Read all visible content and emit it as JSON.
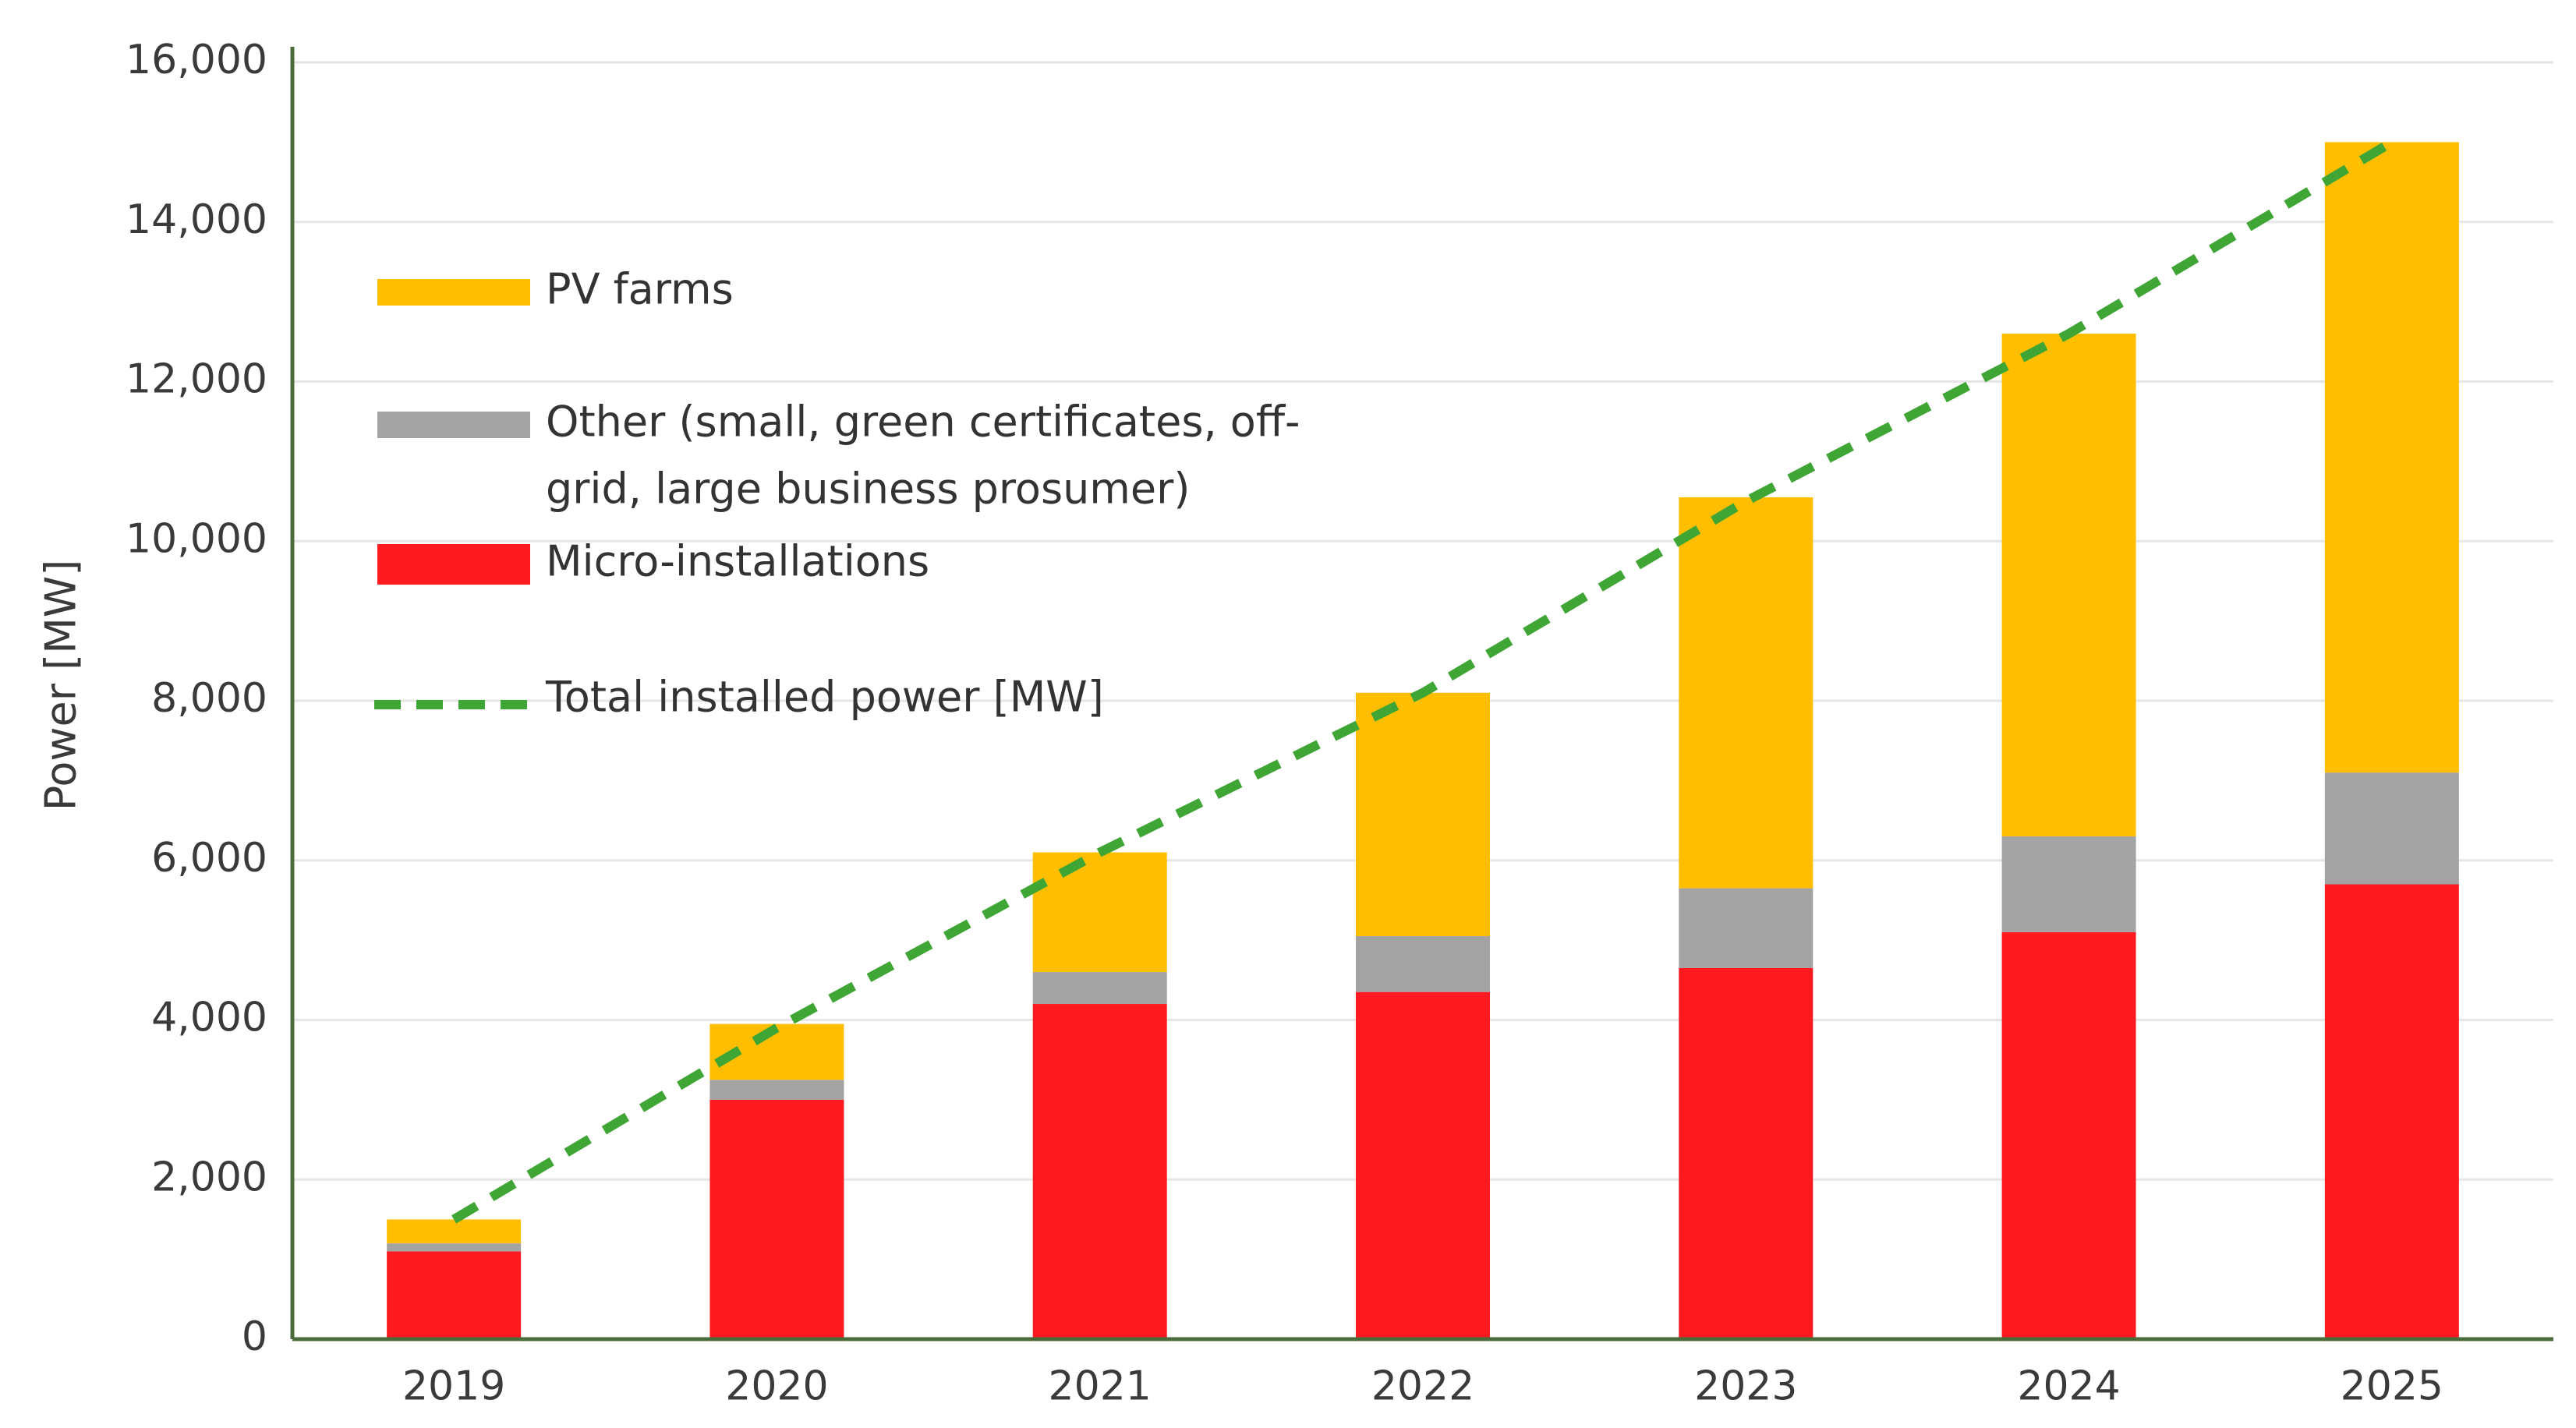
{
  "chart_data": {
    "type": "bar",
    "stacked": true,
    "title": "",
    "xlabel": "",
    "ylabel": "Power  [MW]",
    "ylim": [
      0,
      16000
    ],
    "yticks": [
      0,
      2000,
      4000,
      6000,
      8000,
      10000,
      12000,
      14000,
      16000
    ],
    "ytick_labels": [
      "0",
      "2,000",
      "4,000",
      "6,000",
      "8,000",
      "10,000",
      "12,000",
      "14,000",
      "16,000"
    ],
    "grid": true,
    "legend_position": "top-left",
    "categories": [
      "2019",
      "2020",
      "2021",
      "2022",
      "2023",
      "2024",
      "2025"
    ],
    "series": [
      {
        "name": "Micro-installations",
        "kind": "bar",
        "color": "#ff1a1f",
        "values": [
          1100,
          3000,
          4200,
          4350,
          4650,
          5100,
          5700
        ]
      },
      {
        "name": "Other (small, green certificates, off-grid, large business prosumer)",
        "kind": "bar",
        "color": "#a3a3a3",
        "values": [
          100,
          250,
          400,
          700,
          1000,
          1200,
          1400
        ]
      },
      {
        "name": "PV farms",
        "kind": "bar",
        "color": "#ffbf00",
        "values": [
          300,
          700,
          1500,
          3050,
          4900,
          6300,
          7900
        ]
      },
      {
        "name": "Total installed power [MW]",
        "kind": "line",
        "style": "dashed",
        "color": "#3fa535",
        "values": [
          1500,
          3900,
          6100,
          8100,
          10500,
          12600,
          15000
        ]
      }
    ],
    "legend": [
      {
        "label_lines": [
          "PV farms"
        ],
        "color": "#ffbf00",
        "kind": "bar"
      },
      {
        "label_lines": [
          "Other (small, green certificates, off-",
          "grid, large business prosumer)"
        ],
        "color": "#a3a3a3",
        "kind": "bar"
      },
      {
        "label_lines": [
          "Micro-installations"
        ],
        "color": "#ff1a1f",
        "kind": "bar"
      },
      {
        "label_lines": [
          "Total installed power [MW]"
        ],
        "color": "#3fa535",
        "kind": "line"
      }
    ]
  }
}
